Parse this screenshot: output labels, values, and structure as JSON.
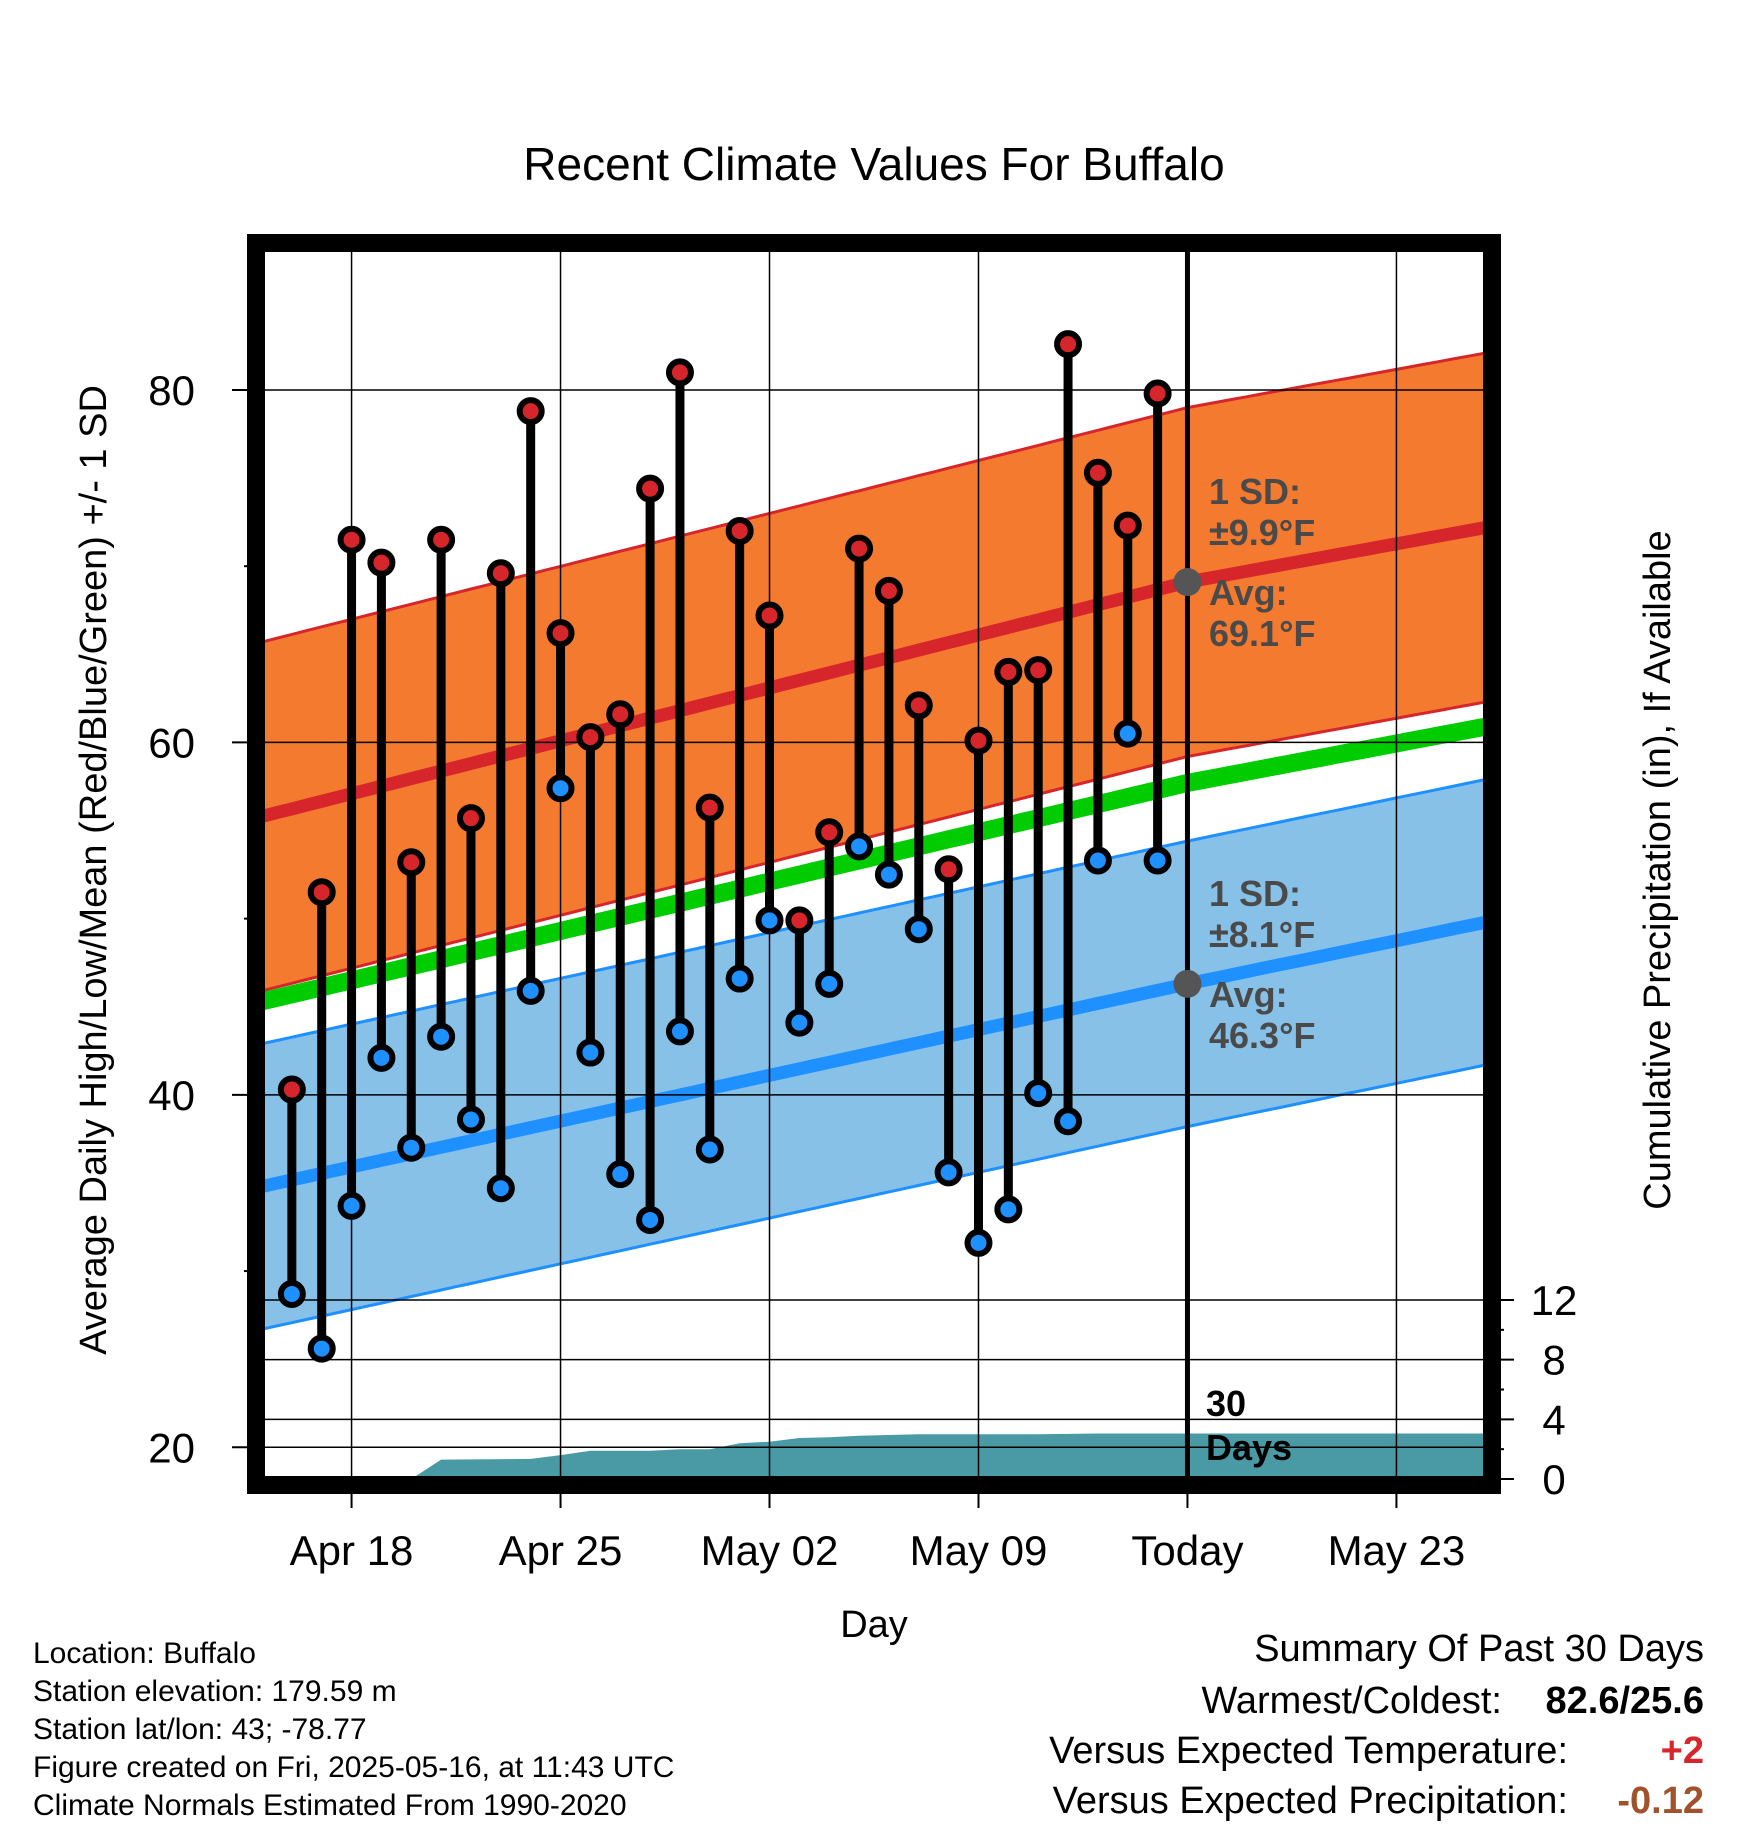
{
  "chart_data": {
    "type": "line",
    "title": "Recent Climate Values For Buffalo",
    "xlabel": "Day",
    "ylabel": "Average Daily High/Low/Mean (Red/Blue/Green) +/- 1 SD",
    "y2label": "Cumulative Precipitation (in), If Available",
    "ylim": [
      18.2,
      88
    ],
    "y2lim": [
      0,
      24
    ],
    "y_ticks": [
      "20",
      "40",
      "60",
      "80"
    ],
    "y2_ticks": [
      "0",
      "4",
      "8",
      "12"
    ],
    "x_range": [
      "2025-04-15",
      "2025-05-26"
    ],
    "x_tick_labels": [
      {
        "date": "2025-04-18",
        "label": "Apr 18"
      },
      {
        "date": "2025-04-25",
        "label": "Apr 25"
      },
      {
        "date": "2025-05-02",
        "label": "May 02"
      },
      {
        "date": "2025-05-09",
        "label": "May 09"
      },
      {
        "date": "2025-05-16",
        "label": "Today"
      },
      {
        "date": "2025-05-23",
        "label": "May 23"
      }
    ],
    "today": "2025-05-16",
    "days_label": "30 Days",
    "daily": [
      {
        "date": "2025-04-16",
        "high": 40.3,
        "low": 28.7
      },
      {
        "date": "2025-04-17",
        "high": 51.5,
        "low": 25.6
      },
      {
        "date": "2025-04-18",
        "high": 71.5,
        "low": 33.7
      },
      {
        "date": "2025-04-19",
        "high": 70.2,
        "low": 42.1
      },
      {
        "date": "2025-04-20",
        "high": 53.2,
        "low": 37.0
      },
      {
        "date": "2025-04-21",
        "high": 71.5,
        "low": 43.3
      },
      {
        "date": "2025-04-22",
        "high": 55.7,
        "low": 38.6
      },
      {
        "date": "2025-04-23",
        "high": 69.6,
        "low": 34.7
      },
      {
        "date": "2025-04-24",
        "high": 78.8,
        "low": 45.9
      },
      {
        "date": "2025-04-25",
        "high": 66.2,
        "low": 57.4
      },
      {
        "date": "2025-04-26",
        "high": 60.3,
        "low": 42.4
      },
      {
        "date": "2025-04-27",
        "high": 61.6,
        "low": 35.5
      },
      {
        "date": "2025-04-28",
        "high": 74.4,
        "low": 32.9
      },
      {
        "date": "2025-04-29",
        "high": 81.0,
        "low": 43.6
      },
      {
        "date": "2025-04-30",
        "high": 56.3,
        "low": 36.9
      },
      {
        "date": "2025-05-01",
        "high": 72.0,
        "low": 46.6
      },
      {
        "date": "2025-05-02",
        "high": 67.2,
        "low": 49.9
      },
      {
        "date": "2025-05-03",
        "high": 49.9,
        "low": 44.1
      },
      {
        "date": "2025-05-04",
        "high": 54.9,
        "low": 46.3
      },
      {
        "date": "2025-05-05",
        "high": 71.0,
        "low": 54.1
      },
      {
        "date": "2025-05-06",
        "high": 68.6,
        "low": 52.5
      },
      {
        "date": "2025-05-07",
        "high": 62.1,
        "low": 49.4
      },
      {
        "date": "2025-05-08",
        "high": 52.8,
        "low": 35.6
      },
      {
        "date": "2025-05-09",
        "high": 60.1,
        "low": 31.6
      },
      {
        "date": "2025-05-10",
        "high": 64.0,
        "low": 33.5
      },
      {
        "date": "2025-05-11",
        "high": 64.1,
        "low": 40.1
      },
      {
        "date": "2025-05-12",
        "high": 82.6,
        "low": 38.5
      },
      {
        "date": "2025-05-13",
        "high": 75.3,
        "low": 53.3
      },
      {
        "date": "2025-05-14",
        "high": 72.3,
        "low": 60.5
      },
      {
        "date": "2025-05-15",
        "high": 79.8,
        "low": 53.3
      }
    ],
    "normal_high": {
      "x": [
        "2025-04-15",
        "2025-05-16",
        "2025-05-26"
      ],
      "avg": [
        55.8,
        69.1,
        72.2
      ],
      "sd": 9.9
    },
    "normal_low": {
      "x": [
        "2025-04-15",
        "2025-05-16",
        "2025-05-26"
      ],
      "avg": [
        34.8,
        46.3,
        49.8
      ],
      "sd": 8.1
    },
    "normal_mean": {
      "x": [
        "2025-04-15",
        "2025-05-16",
        "2025-05-26"
      ],
      "avg": [
        45.3,
        57.7,
        60.9
      ]
    },
    "precip_cumulative": {
      "x": [
        "2025-04-20",
        "2025-04-21",
        "2025-04-24",
        "2025-04-25",
        "2025-04-26",
        "2025-04-28",
        "2025-04-29",
        "2025-04-30",
        "2025-05-01",
        "2025-05-02",
        "2025-05-03",
        "2025-05-04",
        "2025-05-05",
        "2025-05-06",
        "2025-05-07",
        "2025-05-11",
        "2025-05-13",
        "2025-05-16",
        "2025-05-26"
      ],
      "y": [
        0.0,
        1.3,
        1.35,
        1.6,
        1.9,
        1.9,
        2.0,
        2.0,
        2.4,
        2.5,
        2.75,
        2.8,
        2.9,
        2.95,
        3.0,
        3.0,
        3.05,
        3.05,
        3.05
      ]
    },
    "annotations": {
      "high_sd_label": "1 SD:",
      "high_sd_value": "±9.9°F",
      "high_avg_label": "Avg:",
      "high_avg_value": "69.1°F",
      "low_sd_label": "1 SD:",
      "low_sd_value": "±8.1°F",
      "low_avg_label": "Avg:",
      "low_avg_value": "46.3°F"
    },
    "colors": {
      "high_band": "#f47a30",
      "high_line": "#d7262b",
      "low_band": "#87c1e8",
      "low_line": "#1e90ff",
      "mean_line": "#00cc00",
      "precip": "#4a9aa5",
      "high_dot": "#d7262b",
      "low_dot": "#1e90ff",
      "marker": "#555555"
    }
  },
  "info": {
    "location": "Location: Buffalo",
    "elevation": "Station elevation: 179.59 m",
    "latlon": "Station lat/lon: 43; -78.77",
    "created": "Figure created on Fri, 2025-05-16, at 11:43 UTC",
    "normals": "Climate Normals Estimated From 1990-2020"
  },
  "summary": {
    "title": "Summary Of Past 30 Days",
    "warm_cold_label": "Warmest/Coldest:",
    "warm_cold_value": "82.6/25.6",
    "temp_label": "Versus Expected Temperature:",
    "temp_value": "+2",
    "temp_color": "#d7262b",
    "precip_label": "Versus Expected Precipitation:",
    "precip_value": "-0.12",
    "precip_color": "#a0522d"
  }
}
